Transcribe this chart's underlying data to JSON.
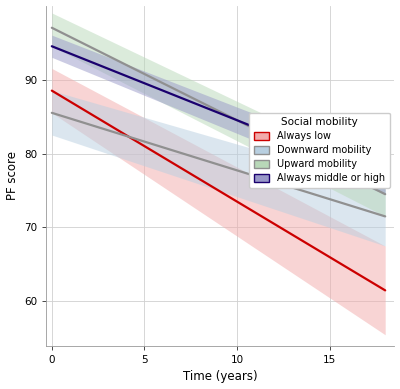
{
  "title": "",
  "xlabel": "Time (years)",
  "ylabel": "PF score",
  "xlim": [
    -0.3,
    18.5
  ],
  "ylim": [
    54,
    100
  ],
  "xticks": [
    0,
    5,
    10,
    15
  ],
  "yticks": [
    60,
    70,
    80,
    90
  ],
  "lines": [
    {
      "label": "Always low",
      "line_color": "#cc0000",
      "fill_color": "#f2aaaa",
      "y0": 88.5,
      "y1": 61.5,
      "ci_low_y0": 85.5,
      "ci_high_y0": 91.5,
      "ci_low_y1": 55.5,
      "ci_high_y1": 67.5
    },
    {
      "label": "Downward mobility",
      "line_color": "#909090",
      "fill_color": "#b8cfe0",
      "y0": 85.5,
      "y1": 71.5,
      "ci_low_y0": 82.5,
      "ci_high_y0": 88.5,
      "ci_low_y1": 67.5,
      "ci_high_y1": 75.5
    },
    {
      "label": "Upward mobility",
      "line_color": "#909090",
      "fill_color": "#b8d8b8",
      "y0": 97.0,
      "y1": 74.5,
      "ci_low_y0": 94.5,
      "ci_high_y0": 99.0,
      "ci_low_y1": 71.5,
      "ci_high_y1": 77.5
    },
    {
      "label": "Always middle or high",
      "line_color": "#1a006e",
      "fill_color": "#9898c8",
      "y0": 94.5,
      "y1": 76.5,
      "ci_low_y0": 93.0,
      "ci_high_y0": 96.0,
      "ci_low_y1": 74.5,
      "ci_high_y1": 78.5
    }
  ],
  "background_color": "#ffffff",
  "grid_color": "#d0d0d0",
  "legend_title": "Social mobility",
  "legend_title_fontsize": 7.5,
  "legend_fontsize": 7,
  "axis_label_fontsize": 8.5,
  "tick_fontsize": 7.5,
  "x_start": 0,
  "x_end": 18
}
